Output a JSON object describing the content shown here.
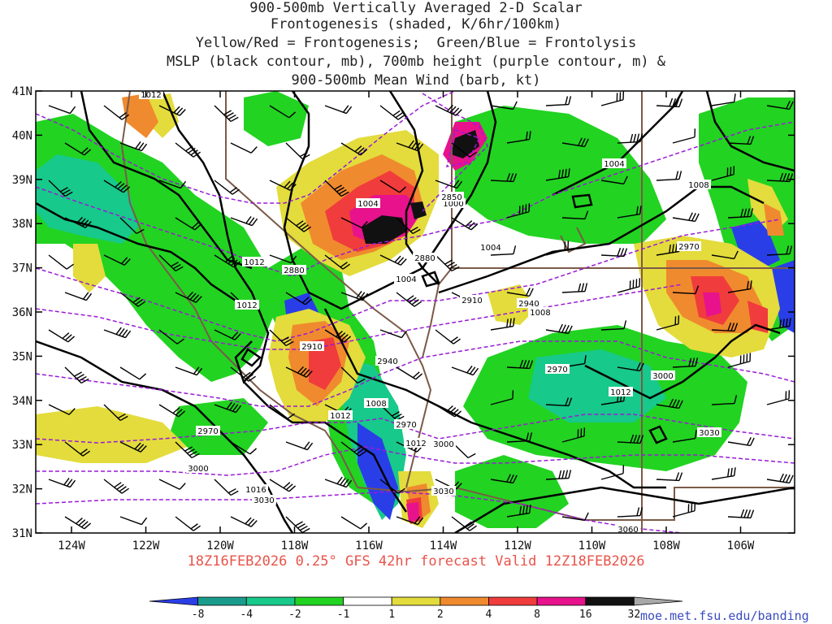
{
  "title_lines": [
    "900-500mb Vertically Averaged 2-D Scalar",
    "Frontogenesis (shaded, K/6hr/100km)",
    "Yellow/Red = Frontogenesis;  Green/Blue = Frontolysis",
    "MSLP (black contour, mb), 700mb height (purple contour, m) &",
    "900-500mb Mean Wind (barb, kt)"
  ],
  "lat_labels": [
    "41N",
    "40N",
    "39N",
    "38N",
    "37N",
    "36N",
    "35N",
    "34N",
    "33N",
    "32N",
    "31N"
  ],
  "lon_labels": [
    "124W",
    "122W",
    "120W",
    "118W",
    "116W",
    "114W",
    "112W",
    "110W",
    "108W",
    "106W"
  ],
  "valid_text": "18Z16FEB2026 0.25° GFS 42hr forecast Valid 12Z18FEB2026",
  "credit": "moe.met.fsu.edu/banding",
  "colorbar": {
    "labels": [
      "-8",
      "-4",
      "-2",
      "-1",
      "1",
      "2",
      "4",
      "8",
      "16",
      "32"
    ],
    "colors": [
      "#2a3ee8",
      "#1a9c8c",
      "#17c98a",
      "#22d322",
      "#ffffff",
      "#e3dc3c",
      "#f08a2e",
      "#f03c3c",
      "#e8128c",
      "#111111",
      "#a8a8a8"
    ]
  },
  "mslp_labels": [
    "1012",
    "1004",
    "1000",
    "1004",
    "1004",
    "1008",
    "1012",
    "1012",
    "1008",
    "1004",
    "1012",
    "1012",
    "1016",
    "1012",
    "1008"
  ],
  "height_labels": [
    "2880",
    "2880",
    "2910",
    "2910",
    "2940",
    "2940",
    "2970",
    "2970",
    "3000",
    "3000",
    "3030",
    "3030",
    "3060",
    "2850",
    "2970",
    "3030",
    "2970",
    "3000"
  ],
  "colors": {
    "mslp": "#000000",
    "height": "#9a1ad6",
    "borders": "#7b5a48",
    "title": "#222222",
    "valid": "#e8534a",
    "credit": "#3a4cc0"
  }
}
